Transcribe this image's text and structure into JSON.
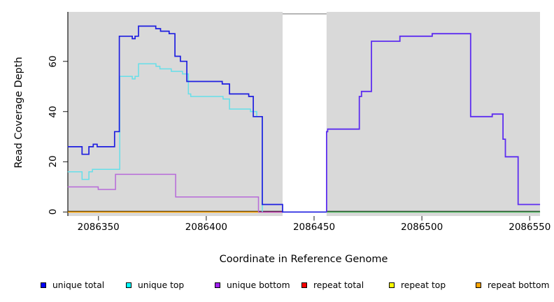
{
  "figure": {
    "xlabel": "Coordinate in Reference Genome",
    "ylabel": "Read Coverage Depth"
  },
  "chart_data": {
    "type": "line",
    "step": "post",
    "title": "",
    "xlabel": "Coordinate in Reference Genome",
    "ylabel": "Read Coverage Depth",
    "x_ticks": [
      2086350,
      2086400,
      2086450,
      2086500,
      2086550
    ],
    "x_tick_labels": [
      "2086350",
      "2086400",
      "2086450",
      "2086500",
      "2086550"
    ],
    "y_ticks": [
      0,
      20,
      40,
      60
    ],
    "y_tick_labels": [
      "0",
      "20",
      "40",
      "60"
    ],
    "xlim": [
      2086335.8,
      2086554.8
    ],
    "ylim": [
      0,
      79.7
    ],
    "grid": false,
    "panel_bg": "#d9d9d9",
    "gap_region": {
      "x_start": 2086435.4,
      "x_end": 2086455.8,
      "fill": "#ffffff"
    },
    "series": [
      {
        "name": "repeat bottom (zero line, left)",
        "color": "#ffa500",
        "width": 1.6,
        "points": [
          [
            2086335.8,
            0
          ]
        ],
        "end_x": 2086424.2
      },
      {
        "name": "overlapped zero line before gap (repeat total + unique bottom)",
        "color": "#c13fae",
        "width": 1.6,
        "points": [
          [
            2086424.2,
            0
          ]
        ],
        "end_x": 2086435.4
      },
      {
        "name": "overlapped zero line after gap",
        "color": "#53b863",
        "width": 1.6,
        "points": [
          [
            2086455.8,
            0
          ]
        ],
        "end_x": 2086554.8
      },
      {
        "name": "unique bottom (left block)",
        "color": "#b76ad9",
        "width": 1.5,
        "points": [
          [
            2086335.8,
            10
          ],
          [
            2086349.9,
            9
          ],
          [
            2086357.9,
            15
          ],
          [
            2086385.8,
            6
          ],
          [
            2086424.2,
            0
          ]
        ],
        "end_x": 2086424.2
      },
      {
        "name": "unique top (left block)",
        "color": "#66dfe9",
        "width": 1.5,
        "points": [
          [
            2086335.8,
            16
          ],
          [
            2086342.4,
            13
          ],
          [
            2086345.6,
            16
          ],
          [
            2086347.2,
            17
          ],
          [
            2086359.9,
            54
          ],
          [
            2086365.7,
            53
          ],
          [
            2086367.0,
            54
          ],
          [
            2086368.6,
            59
          ],
          [
            2086376.7,
            58
          ],
          [
            2086378.5,
            57
          ],
          [
            2086383.8,
            56
          ],
          [
            2086389.0,
            55
          ],
          [
            2086391.7,
            47
          ],
          [
            2086392.8,
            46
          ],
          [
            2086407.8,
            45
          ],
          [
            2086410.8,
            41
          ],
          [
            2086420.5,
            40
          ],
          [
            2086423.4,
            38
          ],
          [
            2086426.0,
            0
          ]
        ],
        "end_x": 2086426.0
      },
      {
        "name": "unique total (left block)",
        "color": "#1e1ee0",
        "width": 1.7,
        "points": [
          [
            2086335.8,
            26
          ],
          [
            2086342.4,
            23
          ],
          [
            2086345.6,
            26
          ],
          [
            2086347.6,
            27
          ],
          [
            2086349.4,
            26
          ],
          [
            2086357.5,
            32
          ],
          [
            2086359.7,
            70
          ],
          [
            2086365.7,
            69
          ],
          [
            2086367.0,
            70
          ],
          [
            2086368.6,
            74
          ],
          [
            2086376.6,
            73
          ],
          [
            2086378.8,
            72
          ],
          [
            2086382.8,
            71
          ],
          [
            2086385.5,
            62
          ],
          [
            2086388.0,
            60
          ],
          [
            2086391.0,
            52
          ],
          [
            2086407.4,
            51
          ],
          [
            2086410.8,
            47
          ],
          [
            2086419.7,
            46
          ],
          [
            2086421.8,
            38
          ],
          [
            2086426.0,
            3
          ],
          [
            2086435.4,
            0
          ]
        ],
        "end_x": 2086455.8
      },
      {
        "name": "unique total + unique bottom (right block, overlapped)",
        "color": "#5d2df0",
        "width": 1.8,
        "points": [
          [
            2086455.8,
            0
          ],
          [
            2086455.8,
            32
          ],
          [
            2086456.3,
            33
          ],
          [
            2086471.0,
            46
          ],
          [
            2086472.0,
            48
          ],
          [
            2086476.6,
            68
          ],
          [
            2086489.8,
            70
          ],
          [
            2086504.8,
            71
          ],
          [
            2086522.6,
            38
          ],
          [
            2086532.6,
            39
          ],
          [
            2086537.6,
            29
          ],
          [
            2086538.7,
            22
          ],
          [
            2086544.6,
            3
          ]
        ],
        "end_x": 2086554.8
      }
    ],
    "legend": {
      "position": "bottom",
      "items": [
        {
          "label": "unique total",
          "color": "#0000ff"
        },
        {
          "label": "unique top",
          "color": "#00ffff"
        },
        {
          "label": "unique bottom",
          "color": "#a020f0"
        },
        {
          "label": "repeat total",
          "color": "#ff0000"
        },
        {
          "label": "repeat top",
          "color": "#ffff00"
        },
        {
          "label": "repeat bottom",
          "color": "#ffa500"
        }
      ]
    }
  }
}
